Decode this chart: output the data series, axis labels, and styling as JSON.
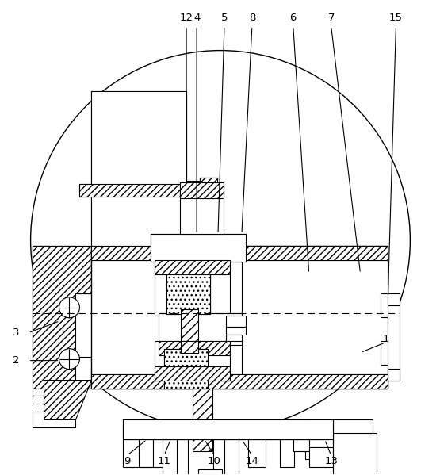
{
  "fig_width": 5.55,
  "fig_height": 5.99,
  "dpi": 100,
  "bg_color": "#ffffff",
  "line_color": "#000000"
}
